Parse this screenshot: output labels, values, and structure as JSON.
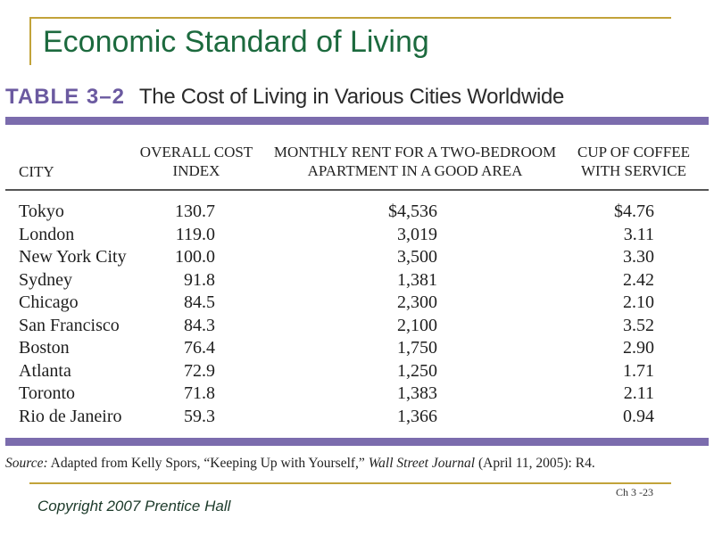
{
  "slide": {
    "title": "Economic Standard of Living",
    "copyright": "Copyright 2007 Prentice Hall",
    "slide_number": "Ch 3 -23"
  },
  "table": {
    "number": "TABLE 3–2",
    "caption": "The Cost of Living in Various Cities Worldwide",
    "headers": {
      "city": "CITY",
      "index_line1": "OVERALL COST",
      "index_line2": "INDEX",
      "rent_line1": "MONTHLY RENT FOR A TWO-BEDROOM",
      "rent_line2": "APARTMENT IN A GOOD AREA",
      "coffee_line1": "CUP OF COFFEE",
      "coffee_line2": "WITH SERVICE"
    },
    "rows": [
      {
        "city": "Tokyo",
        "index": "130.7",
        "rent": "$4,536",
        "coffee": "$4.76"
      },
      {
        "city": "London",
        "index": "119.0",
        "rent": "3,019",
        "coffee": "3.11"
      },
      {
        "city": "New York City",
        "index": "100.0",
        "rent": "3,500",
        "coffee": "3.30"
      },
      {
        "city": "Sydney",
        "index": "91.8",
        "rent": "1,381",
        "coffee": "2.42"
      },
      {
        "city": "Chicago",
        "index": "84.5",
        "rent": "2,300",
        "coffee": "2.10"
      },
      {
        "city": "San Francisco",
        "index": "84.3",
        "rent": "2,100",
        "coffee": "3.52"
      },
      {
        "city": "Boston",
        "index": "76.4",
        "rent": "1,750",
        "coffee": "2.90"
      },
      {
        "city": "Atlanta",
        "index": "72.9",
        "rent": "1,250",
        "coffee": "1.71"
      },
      {
        "city": "Toronto",
        "index": "71.8",
        "rent": "1,383",
        "coffee": "2.11"
      },
      {
        "city": "Rio de Janeiro",
        "index": "59.3",
        "rent": "1,366",
        "coffee": "0.94"
      }
    ],
    "source": {
      "label": "Source:",
      "text_before": " Adapted from Kelly Spors, “Keeping Up with Yourself,” ",
      "journal": "Wall Street Journal",
      "text_after": " (April 11, 2005): R4."
    }
  },
  "colors": {
    "title_green": "#1c6a3e",
    "rule_gold": "#c2a33a",
    "band_purple": "#7b6cad"
  }
}
